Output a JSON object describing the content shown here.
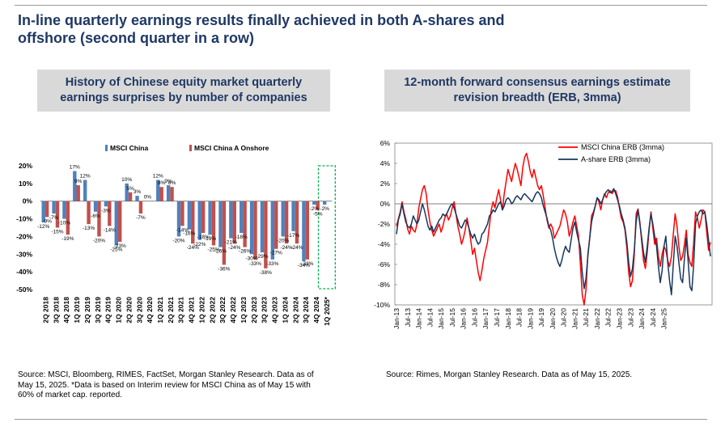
{
  "header": {
    "line1": "In-line quarterly earnings results finally achieved in both A-shares and",
    "line2": "offshore (second quarter in a row)"
  },
  "left_panel": {
    "title_line1": "History of Chinese equity market quarterly",
    "title_line2": "earnings surprises by number of companies",
    "source_line1": "Source: MSCI, Bloomberg, RIMES, FactSet, Morgan Stanley Research. Data as of",
    "source_line2": "May 15, 2025. *Data is based on Interim review for MSCI China as of May 15 with",
    "source_line3": "60% of market cap. reported."
  },
  "right_panel": {
    "title_line1": "12-month forward consensus earnings estimate",
    "title_line2": "revision breadth (ERB, 3mma)",
    "source": "Source: Rimes, Morgan Stanley Research. Data as of May 15, 2025."
  },
  "colors": {
    "title": "#1f3864",
    "panel_bg": "#d9d9d9",
    "china": "#4f81bd",
    "onshore": "#c0504d",
    "highlight": "#00b050",
    "erb_msci": "#ff0000",
    "erb_ashare": "#17375e"
  },
  "chart_data": [
    {
      "type": "bar",
      "title": "History of Chinese equity market quarterly earnings surprises by number of companies",
      "categories": [
        "2Q 2018",
        "3Q 2018",
        "4Q 2018",
        "1Q 2019",
        "2Q 2019",
        "3Q 2019",
        "4Q 2019",
        "1Q 2020",
        "2Q 2020",
        "3Q 2020",
        "4Q 2020",
        "1Q 2021",
        "2Q 2021",
        "3Q 2021",
        "4Q 2021",
        "1Q 2022",
        "2Q 2022",
        "3Q 2022",
        "4Q 2022",
        "1Q 2023",
        "2Q 2023",
        "3Q 2023",
        "4Q 2023",
        "1Q 2024",
        "2Q 2024",
        "3Q 2024",
        "4Q 2024",
        "1Q 2025*"
      ],
      "series": [
        {
          "name": "MSCI China",
          "values": [
            -12,
            -7,
            -10,
            17,
            12,
            -6,
            -3,
            -25,
            10,
            3,
            0,
            12,
            9,
            -20,
            -16,
            -22,
            -19,
            -26,
            -21,
            -18,
            -30,
            -29,
            -33,
            -20,
            -17,
            -34,
            -2,
            -2
          ],
          "labels": [
            "-12%",
            "-7%",
            "-10%",
            "17%",
            "12%",
            "-6%",
            "-3%",
            "-25%",
            "10%",
            "3%",
            "0%",
            "12%",
            "9%",
            "-20%",
            "-16%",
            "-22%",
            "-19%",
            "-26%",
            "-21%",
            "-18%",
            "-30%",
            "-29%",
            "-33%",
            "-20%",
            "-17%",
            "-34%",
            "-2%",
            "-2%"
          ]
        },
        {
          "name": "MSCI China A Onshore",
          "values": [
            -9,
            -15,
            -19,
            9,
            -13,
            -20,
            -14,
            -23,
            5,
            -7,
            0,
            8,
            8,
            -14,
            -24,
            -18,
            -25,
            -36,
            -24,
            -26,
            -33,
            -38,
            -27,
            -24,
            -24,
            -33,
            -5,
            0
          ],
          "labels": [
            "-9%",
            "-15%",
            "-19%",
            "9%",
            "-13%",
            "-20%",
            "-14%",
            "-23%",
            "5%",
            "-7%",
            "",
            "8%",
            "8%",
            "-14%",
            "-24%",
            "-18%",
            "-25%",
            "-36%",
            "-24%",
            "-26%",
            "-33%",
            "-38%",
            "-27%",
            "-24%",
            "-24%",
            "-33%",
            "-5%",
            ""
          ]
        }
      ],
      "ylim": [
        -50,
        20
      ],
      "yticks": [
        "20%",
        "10%",
        "0%",
        "-10%",
        "-20%",
        "-30%",
        "-40%",
        "-50%"
      ],
      "legend": "top",
      "highlight": "1Q 2025*"
    },
    {
      "type": "line",
      "title": "12-month forward consensus earnings estimate revision breadth (ERB, 3mma)",
      "x_start": "Jan-13",
      "ylim": [
        -10,
        6
      ],
      "yticks": [
        "6%",
        "4%",
        "2%",
        "0%",
        "-2%",
        "-4%",
        "-6%",
        "-8%",
        "-10%"
      ],
      "xticks": [
        "Jan-13",
        "Jul-13",
        "Jan-14",
        "Jul-14",
        "Jan-15",
        "Jul-15",
        "Jan-16",
        "Jul-16",
        "Jan-17",
        "Jul-17",
        "Jan-18",
        "Jul-18",
        "Jan-19",
        "Jul-19",
        "Jan-20",
        "Jul-20",
        "Jan-21",
        "Jul-21",
        "Jan-22",
        "Jul-22",
        "Jan-23",
        "Jul-23",
        "Jan-24",
        "Jul-24",
        "Jan-25"
      ],
      "legend": "top-right",
      "series": [
        {
          "name": "MSCI China ERB (3mma)",
          "values": [
            -2.2,
            -1.5,
            -0.8,
            0.2,
            -0.8,
            -1.5,
            -2.5,
            -3.0,
            -2.2,
            -2.6,
            -2.8,
            -2.0,
            -0.4,
            0.5,
            1.4,
            1.8,
            1.0,
            -0.6,
            -1.8,
            -2.6,
            -3.2,
            -2.8,
            -2.4,
            -2.0,
            -2.8,
            -2.2,
            -1.4,
            -1.0,
            -1.6,
            -1.2,
            -0.4,
            0.2,
            -1.0,
            -2.2,
            -3.0,
            -4.0,
            -3.4,
            -2.6,
            -1.4,
            -2.4,
            -3.6,
            -5.0,
            -4.4,
            -5.6,
            -6.8,
            -7.6,
            -6.6,
            -5.4,
            -4.6,
            -3.8,
            -2.2,
            -0.6,
            0.2,
            -0.4,
            0.6,
            1.4,
            0.4,
            -0.6,
            1.0,
            2.2,
            3.4,
            2.8,
            2.2,
            3.2,
            4.0,
            3.4,
            2.6,
            1.8,
            3.6,
            4.6,
            5.0,
            4.2,
            3.2,
            2.6,
            3.4,
            2.6,
            1.8,
            1.4,
            1.8,
            0.8,
            -0.4,
            -1.6,
            -2.4,
            -2.0,
            -2.4,
            -3.4,
            -3.0,
            -2.6,
            -2.2,
            -1.4,
            -0.6,
            -1.0,
            -1.8,
            -3.2,
            -2.6,
            -1.8,
            -1.2,
            -2.2,
            -3.2,
            -6.0,
            -9.0,
            -10.0,
            -8.5,
            -5.0,
            -3.4,
            -1.2,
            -0.8,
            -0.2,
            0.6,
            0.2,
            -0.6,
            0.4,
            1.0,
            0.6,
            1.1,
            1.3,
            1.0,
            1.3,
            1.3,
            0.7,
            -0.4,
            -1.4,
            -1.8,
            -2.6,
            -4.4,
            -6.8,
            -8.2,
            -7.6,
            -5.0,
            -1.0,
            -0.5,
            -1.8,
            -3.8,
            -5.6,
            -6.4,
            -4.8,
            -2.6,
            -0.8,
            -2.4,
            -4.0,
            -3.4,
            -5.2,
            -6.2,
            -5.0,
            -4.2,
            -4.6,
            -5.6,
            -6.2,
            -5.2,
            -3.0,
            -1.0,
            -2.2,
            -4.2,
            -5.6,
            -5.2,
            -4.0,
            -2.6,
            -5.0,
            -5.8,
            -6.2,
            -3.8,
            -0.8,
            -1.4,
            -2.4,
            -1.6,
            -0.6,
            -0.8,
            -2.8,
            -4.6,
            -3.8
          ],
          "color": "#ff0000"
        },
        {
          "name": "A-share ERB (3mma)",
          "values": [
            -3.0,
            -1.6,
            -1.0,
            0.0,
            -1.0,
            -1.8,
            -2.2,
            -2.4,
            -2.0,
            -1.2,
            -1.6,
            -2.0,
            -1.6,
            -0.8,
            0.0,
            -0.6,
            -1.4,
            -2.2,
            -2.6,
            -2.2,
            -2.8,
            -2.4,
            -2.0,
            -1.6,
            -1.4,
            -1.0,
            -1.2,
            -1.0,
            -0.6,
            -0.2,
            0.0,
            -0.4,
            -1.0,
            -1.6,
            -2.2,
            -2.4,
            -2.0,
            -1.6,
            -1.8,
            -2.4,
            -3.0,
            -3.4,
            -3.0,
            -3.6,
            -4.0,
            -3.8,
            -3.0,
            -2.8,
            -2.4,
            -2.0,
            -1.2,
            -1.0,
            -0.6,
            -0.8,
            -0.4,
            0.0,
            0.2,
            -0.6,
            -0.2,
            0.4,
            0.6,
            0.4,
            0.0,
            0.2,
            0.6,
            0.8,
            0.6,
            0.4,
            0.8,
            1.0,
            0.8,
            0.6,
            0.4,
            0.2,
            0.6,
            1.0,
            1.2,
            1.0,
            0.6,
            -0.2,
            -0.8,
            -1.4,
            -2.2,
            -2.6,
            -3.4,
            -4.4,
            -5.2,
            -5.8,
            -6.2,
            -5.6,
            -4.8,
            -4.2,
            -4.6,
            -4.8,
            -3.6,
            -2.4,
            -1.8,
            -2.8,
            -3.6,
            -4.4,
            -6.8,
            -8.4,
            -7.4,
            -5.2,
            -3.4,
            -1.8,
            -1.0,
            -0.2,
            0.6,
            0.4,
            0.0,
            0.4,
            0.9,
            1.2,
            1.4,
            1.1,
            1.2,
            1.5,
            1.0,
            0.4,
            -0.2,
            -1.0,
            -1.6,
            -2.4,
            -3.8,
            -5.8,
            -7.2,
            -6.4,
            -4.6,
            -1.8,
            -0.6,
            -2.0,
            -3.4,
            -4.8,
            -5.8,
            -4.2,
            -2.4,
            -1.0,
            -2.0,
            -3.2,
            -4.2,
            -6.2,
            -7.8,
            -6.6,
            -4.2,
            -3.2,
            -5.8,
            -7.6,
            -9.0,
            -6.0,
            -3.2,
            -4.2,
            -5.8,
            -7.4,
            -7.8,
            -5.4,
            -3.4,
            -5.6,
            -8.2,
            -8.6,
            -6.0,
            -2.0,
            -1.2,
            -0.8,
            -0.6,
            -1.0,
            -0.8,
            -2.0,
            -3.6,
            -5.2
          ],
          "color": "#17375e"
        }
      ]
    }
  ]
}
